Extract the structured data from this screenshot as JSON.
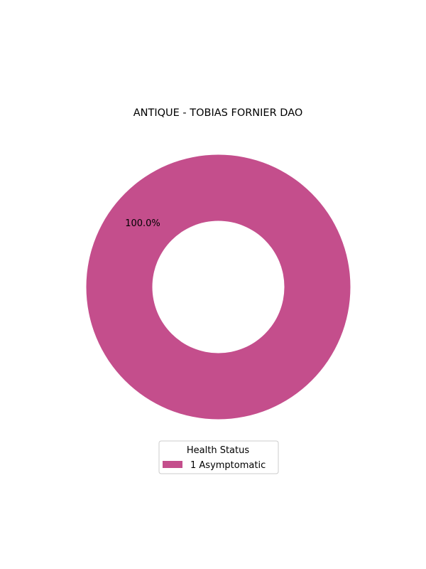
{
  "chart_data": {
    "type": "pie",
    "variant": "donut",
    "title": "ANTIQUE - TOBIAS FORNIER DAO",
    "categories": [
      "1  Asymptomatic"
    ],
    "values": [
      1
    ],
    "percent_labels": [
      "100.0%"
    ],
    "colors": [
      "#c44e8c"
    ],
    "legend": {
      "title": "Health Status",
      "placement": "bottom-center",
      "entries": [
        "1  Asymptomatic"
      ]
    },
    "grid": false
  }
}
